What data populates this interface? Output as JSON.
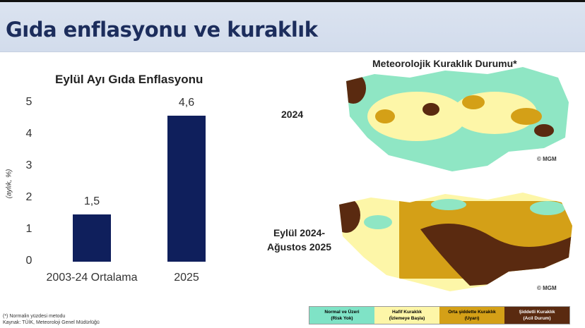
{
  "header": {
    "title": "Gıda enflasyonu ve kuraklık"
  },
  "chart_data": {
    "type": "bar",
    "title": "Eylül Ayı Gıda Enflasyonu",
    "ylabel": "(aylık, %)",
    "xlabel": "",
    "categories": [
      "2003-24 Ortalama",
      "2025"
    ],
    "values": [
      1.5,
      4.6
    ],
    "value_labels": [
      "1,5",
      "4,6"
    ],
    "ylim": [
      0,
      5
    ],
    "yticks": [
      "0",
      "1",
      "2",
      "3",
      "4",
      "5"
    ],
    "bar_color": "#0f1f5c",
    "grid": false
  },
  "maps": {
    "title": "Meteorolojik Kuraklık Durumu*",
    "map1_label": "2024",
    "map2_label_line1": "Eylül 2024-",
    "map2_label_line2": "Ağustos 2025",
    "credit": "© MGM"
  },
  "legend": [
    {
      "line1": "Normal ve Üzeri",
      "line2": "(Risk Yok)",
      "color": "#7fe3c6"
    },
    {
      "line1": "Hafif Kuraklık",
      "line2": "(İzlemeye Başla)",
      "color": "#fdf6a8"
    },
    {
      "line1": "Orta şiddette Kuraklık",
      "line2": "(Uyarı)",
      "color": "#d4a017"
    },
    {
      "line1": "Şiddetli Kuraklık",
      "line2": "(Acil Durum)",
      "color": "#5a2a10"
    }
  ],
  "footnotes": {
    "note": "(*) Normalin yüzdesi metodu",
    "source": "Kaynak: TÜİK, Meteoroloji Genel Müdürlüğü"
  }
}
